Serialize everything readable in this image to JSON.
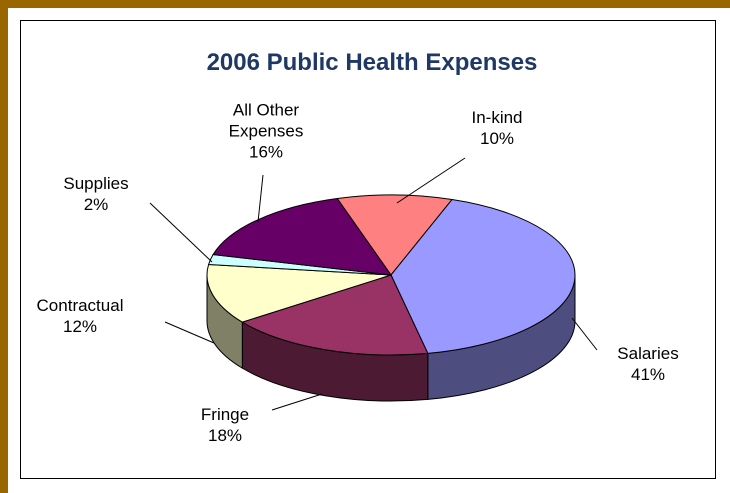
{
  "chart_data": {
    "type": "pie",
    "title": "2006 Public Health Expenses",
    "categories": [
      "In-kind",
      "Salaries",
      "Fringe",
      "Contractual",
      "Supplies",
      "All Other Expenses"
    ],
    "values": [
      10,
      41,
      18,
      12,
      2,
      16
    ],
    "value_labels": [
      "10%",
      "41%",
      "18%",
      "12%",
      "2%",
      "16%"
    ],
    "colors": [
      "#ff8080",
      "#9999ff",
      "#993366",
      "#ffffcc",
      "#ccffff",
      "#660066"
    ]
  }
}
